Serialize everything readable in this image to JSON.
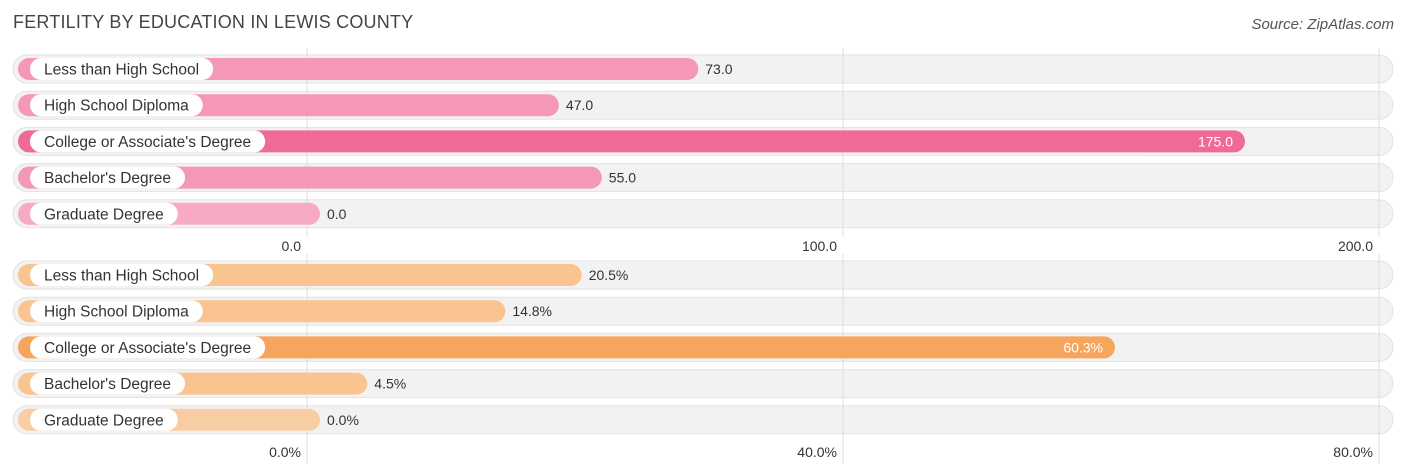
{
  "title": "FERTILITY BY EDUCATION IN LEWIS COUNTY",
  "source": "Source: ZipAtlas.com",
  "chart_data": [
    {
      "type": "bar",
      "orientation": "horizontal",
      "categories": [
        "Less than High School",
        "High School Diploma",
        "College or Associate's Degree",
        "Bachelor's Degree",
        "Graduate Degree"
      ],
      "values": [
        73.0,
        47.0,
        175.0,
        55.0,
        0.0
      ],
      "value_labels": [
        "73.0",
        "47.0",
        "175.0",
        "55.0",
        "0.0"
      ],
      "xlim": [
        0,
        200
      ],
      "ticks": [
        "0.0",
        "100.0",
        "200.0"
      ],
      "colors": [
        "#f598b8",
        "#f598b8",
        "#ef6a98",
        "#f598b8",
        "#f7aac5"
      ],
      "highlight_index": 2,
      "grid": true
    },
    {
      "type": "bar",
      "orientation": "horizontal",
      "categories": [
        "Less than High School",
        "High School Diploma",
        "College or Associate's Degree",
        "Bachelor's Degree",
        "Graduate Degree"
      ],
      "values": [
        20.5,
        14.8,
        60.3,
        4.5,
        0.0
      ],
      "value_labels": [
        "20.5%",
        "14.8%",
        "60.3%",
        "4.5%",
        "0.0%"
      ],
      "xlim": [
        0,
        80
      ],
      "ticks": [
        "0.0%",
        "40.0%",
        "80.0%"
      ],
      "colors": [
        "#f9c490",
        "#f9c490",
        "#f5a55c",
        "#f9c490",
        "#f9cda3"
      ],
      "highlight_index": 2,
      "grid": true
    }
  ]
}
